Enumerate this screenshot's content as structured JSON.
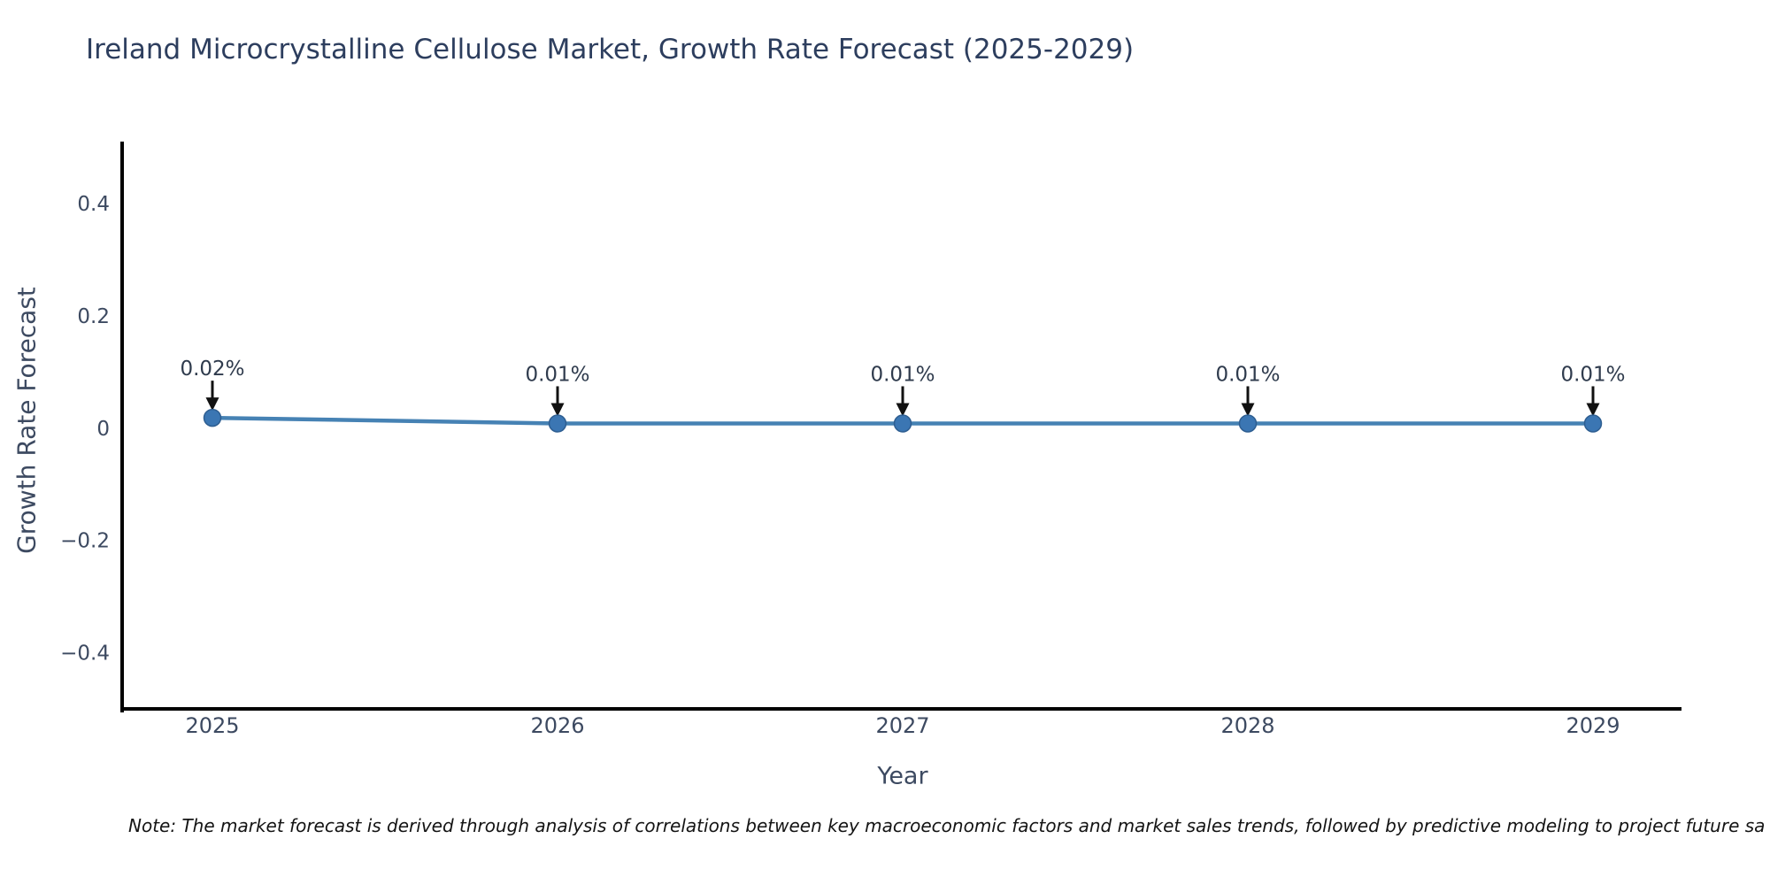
{
  "page": {
    "note": "Note: The market forecast is derived through analysis of correlations between key macroeconomic factors and market sales trends, followed by predictive modeling to project future sa"
  },
  "chart_data": {
    "type": "line",
    "title": "Ireland Microcrystalline Cellulose Market, Growth Rate Forecast (2025-2029)",
    "xlabel": "Year",
    "ylabel": "Growth Rate Forecast",
    "categories": [
      "2025",
      "2026",
      "2027",
      "2028",
      "2029"
    ],
    "values": [
      0.02,
      0.01,
      0.01,
      0.01,
      0.01
    ],
    "value_labels": [
      "0.02%",
      "0.01%",
      "0.01%",
      "0.01%",
      "0.01%"
    ],
    "ytick_values": [
      0.4,
      0.2,
      0,
      -0.2,
      -0.4
    ],
    "ytick_labels": [
      "0.4",
      "0.2",
      "0",
      "−0.2",
      "−0.4"
    ],
    "ylim": [
      -0.5,
      0.512
    ],
    "grid": false,
    "legend": "none",
    "colors": {
      "line": "#4682B4",
      "marker_fill": "#3B76B3",
      "marker_edge": "#2E5E91",
      "spine": "#000000",
      "annotation_arrow": "#111111"
    }
  }
}
